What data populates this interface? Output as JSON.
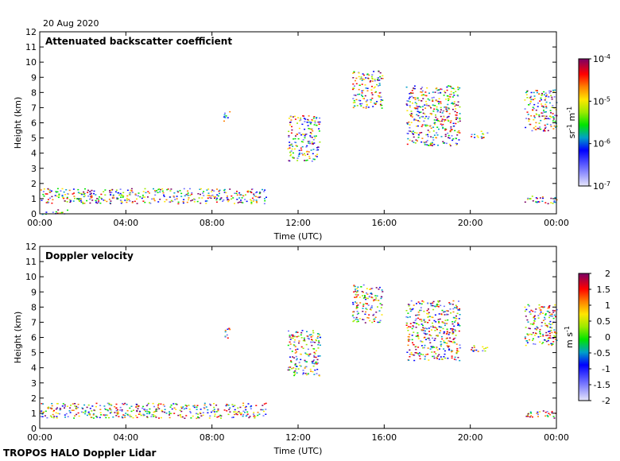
{
  "date": "20 Aug 2020",
  "footer": "TROPOS HALO Doppler Lidar",
  "chart_data": [
    {
      "type": "heatmap",
      "title": "Attenuated backscatter coefficient",
      "xlabel": "Time (UTC)",
      "ylabel": "Height (km)",
      "xlim": [
        0,
        24
      ],
      "ylim": [
        0,
        12
      ],
      "x_ticks": [
        0,
        4,
        8,
        12,
        16,
        20,
        24
      ],
      "x_tick_labels": [
        "00:00",
        "04:00",
        "08:00",
        "12:00",
        "16:00",
        "20:00",
        "00:00"
      ],
      "y_ticks": [
        0,
        1,
        2,
        3,
        4,
        5,
        6,
        7,
        8,
        9,
        10,
        11,
        12
      ],
      "y_tick_labels": [
        "0",
        "1",
        "2",
        "3",
        "4",
        "5",
        "6",
        "7",
        "8",
        "9",
        "10",
        "11",
        "12"
      ],
      "colorbar": {
        "scale": "log",
        "range": [
          1e-07,
          0.0001
        ],
        "label_base": "sr",
        "label_base_sup": "-1",
        "label_second": " m",
        "label_second_sup": "-1",
        "ticks": [
          {
            "value": -7,
            "base": "10",
            "exp": "-7"
          },
          {
            "value": -6,
            "base": "10",
            "exp": "-6"
          },
          {
            "value": -5,
            "base": "10",
            "exp": "-5"
          },
          {
            "value": -4,
            "base": "10",
            "exp": "-4"
          }
        ]
      },
      "features": [
        {
          "x0": 0,
          "x1": 10.5,
          "y0": 0.7,
          "y1": 1.7,
          "level": "boundary-layer aerosol, ~1e-6 to 1e-4"
        },
        {
          "x0": 0.1,
          "x1": 1.3,
          "y0": 0,
          "y1": 0.3,
          "level": "near-surface, ~1e-7"
        },
        {
          "x0": 8.5,
          "x1": 8.8,
          "y0": 6.0,
          "y1": 6.8,
          "level": "~3e-5"
        },
        {
          "x0": 11.5,
          "x1": 13.0,
          "y0": 3.5,
          "y1": 6.5,
          "level": "~1e-5 to 1e-4"
        },
        {
          "x0": 14.5,
          "x1": 15.9,
          "y0": 7.0,
          "y1": 9.5,
          "level": "~5e-5 to 1e-4"
        },
        {
          "x0": 17.0,
          "x1": 19.5,
          "y0": 4.5,
          "y1": 8.5,
          "level": "~1e-5 to 1e-4"
        },
        {
          "x0": 20.0,
          "x1": 20.8,
          "y0": 5.0,
          "y1": 5.5,
          "level": "~5e-5"
        },
        {
          "x0": 22.5,
          "x1": 24.0,
          "y0": 5.5,
          "y1": 8.2,
          "level": "~5e-5 to 1e-4"
        },
        {
          "x0": 22.5,
          "x1": 24.0,
          "y0": 0.7,
          "y1": 1.2,
          "level": "~1e-5"
        }
      ]
    },
    {
      "type": "heatmap",
      "title": "Doppler velocity",
      "xlabel": "Time (UTC)",
      "ylabel": "Height (km)",
      "xlim": [
        0,
        24
      ],
      "ylim": [
        0,
        12
      ],
      "x_ticks": [
        0,
        4,
        8,
        12,
        16,
        20,
        24
      ],
      "x_tick_labels": [
        "00:00",
        "04:00",
        "08:00",
        "12:00",
        "16:00",
        "20:00",
        "00:00"
      ],
      "y_ticks": [
        0,
        1,
        2,
        3,
        4,
        5,
        6,
        7,
        8,
        9,
        10,
        11,
        12
      ],
      "y_tick_labels": [
        "0",
        "1",
        "2",
        "3",
        "4",
        "5",
        "6",
        "7",
        "8",
        "9",
        "10",
        "11",
        "12"
      ],
      "colorbar": {
        "scale": "linear",
        "range": [
          -2,
          2
        ],
        "label_base": "m s",
        "label_base_sup": "-1",
        "ticks": [
          {
            "value": -2,
            "label": "-2"
          },
          {
            "value": -1.5,
            "label": "-1.5"
          },
          {
            "value": -1,
            "label": "-1"
          },
          {
            "value": -0.5,
            "label": "-0.5"
          },
          {
            "value": 0,
            "label": "0"
          },
          {
            "value": 0.5,
            "label": "0.5"
          },
          {
            "value": 1,
            "label": "1"
          },
          {
            "value": 1.5,
            "label": "1.5"
          },
          {
            "value": 2,
            "label": "2"
          }
        ]
      },
      "features": [
        {
          "x0": 0,
          "x1": 10.5,
          "y0": 0.7,
          "y1": 1.7,
          "level": "mixed, -2 to 2 m/s"
        },
        {
          "x0": 8.5,
          "x1": 8.8,
          "y0": 6.0,
          "y1": 6.8,
          "level": "~0.3 m/s"
        },
        {
          "x0": 11.5,
          "x1": 13.0,
          "y0": 3.5,
          "y1": 6.5,
          "level": "~0 to 0.8 m/s"
        },
        {
          "x0": 14.5,
          "x1": 15.9,
          "y0": 7.0,
          "y1": 9.5,
          "level": "~-0.5 to 0.2 m/s"
        },
        {
          "x0": 17.0,
          "x1": 19.5,
          "y0": 4.5,
          "y1": 8.5,
          "level": "~0 to 1 m/s"
        },
        {
          "x0": 20.0,
          "x1": 20.8,
          "y0": 5.0,
          "y1": 5.5,
          "level": "~0.5 m/s"
        },
        {
          "x0": 22.5,
          "x1": 24.0,
          "y0": 5.5,
          "y1": 8.2,
          "level": "~-1.8 m/s"
        },
        {
          "x0": 22.5,
          "x1": 24.0,
          "y0": 0.7,
          "y1": 1.2,
          "level": "~-0.5 m/s"
        }
      ]
    }
  ]
}
